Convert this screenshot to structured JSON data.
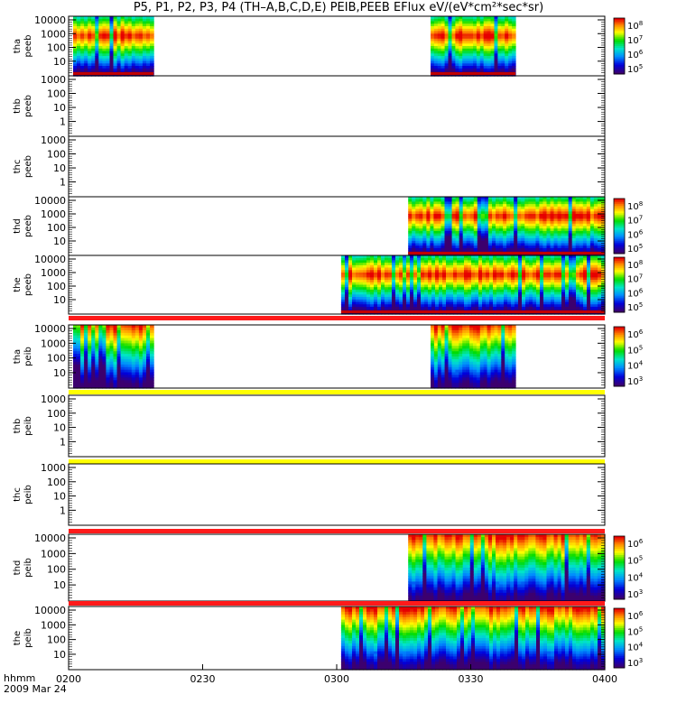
{
  "title": "P5, P1, P2, P3, P4 (TH–A,B,C,D,E) PEIB,PEEB EFlux eV/(eV*cm²*sec*sr)",
  "footer": {
    "hhmm": "hhmm",
    "date": "2009 Mar 24"
  },
  "time_ticks": [
    "0200",
    "0230",
    "0300",
    "0330",
    "0400"
  ],
  "colors": {
    "flag_red": "#ff1a1a",
    "flag_yellow": "#ffff00"
  },
  "chart_data": {
    "type": "heatmap",
    "x_range_hhmm": [
      "0200",
      "0400"
    ],
    "panels": [
      {
        "probe": "tha",
        "product": "peeb",
        "yaxis": [
          "10000",
          "1000",
          "100",
          "10"
        ],
        "colorbar": [
          "10^8",
          "10^7",
          "10^6",
          "10^5"
        ],
        "coverage_hhmm": [
          [
            "0201",
            "0219"
          ],
          [
            "0321",
            "0340"
          ]
        ],
        "flag_bar": null,
        "spec": "electron"
      },
      {
        "probe": "thb",
        "product": "peeb",
        "yaxis": [
          "1000",
          "100",
          "10",
          "1"
        ],
        "colorbar": [],
        "coverage_hhmm": [],
        "flag_bar": null,
        "spec": "none"
      },
      {
        "probe": "thc",
        "product": "peeb",
        "yaxis": [
          "1000",
          "100",
          "10",
          "1"
        ],
        "colorbar": [],
        "coverage_hhmm": [],
        "flag_bar": null,
        "spec": "none"
      },
      {
        "probe": "thd",
        "product": "peeb",
        "yaxis": [
          "10000",
          "1000",
          "100",
          "10"
        ],
        "colorbar": [
          "10^8",
          "10^7",
          "10^6",
          "10^5"
        ],
        "coverage_hhmm": [
          [
            "0316",
            "0400"
          ]
        ],
        "flag_bar": null,
        "spec": "electron"
      },
      {
        "probe": "the",
        "product": "peeb",
        "yaxis": [
          "10000",
          "1000",
          "100",
          "10"
        ],
        "colorbar": [
          "10^8",
          "10^7",
          "10^6",
          "10^5"
        ],
        "coverage_hhmm": [
          [
            "0301",
            "0400"
          ]
        ],
        "flag_bar": "red",
        "spec": "electron"
      },
      {
        "probe": "tha",
        "product": "peib",
        "yaxis": [
          "10000",
          "1000",
          "100",
          "10"
        ],
        "colorbar": [
          "10^6",
          "10^5",
          "10^4",
          "10^3"
        ],
        "coverage_hhmm": [
          [
            "0201",
            "0219"
          ],
          [
            "0321",
            "0340"
          ]
        ],
        "flag_bar": "yellow",
        "spec": "ion"
      },
      {
        "probe": "thb",
        "product": "peib",
        "yaxis": [
          "1000",
          "100",
          "10",
          "1"
        ],
        "colorbar": [],
        "coverage_hhmm": [],
        "flag_bar": "yellow",
        "spec": "none"
      },
      {
        "probe": "thc",
        "product": "peib",
        "yaxis": [
          "1000",
          "100",
          "10",
          "1"
        ],
        "colorbar": [],
        "coverage_hhmm": [],
        "flag_bar": "red",
        "spec": "none"
      },
      {
        "probe": "thd",
        "product": "peib",
        "yaxis": [
          "10000",
          "1000",
          "100",
          "10"
        ],
        "colorbar": [
          "10^6",
          "10^5",
          "10^4",
          "10^3"
        ],
        "coverage_hhmm": [
          [
            "0316",
            "0400"
          ]
        ],
        "flag_bar": "red",
        "spec": "ion"
      },
      {
        "probe": "the",
        "product": "peib",
        "yaxis": [
          "10000",
          "1000",
          "100",
          "10"
        ],
        "colorbar": [
          "10^6",
          "10^5",
          "10^4",
          "10^3"
        ],
        "coverage_hhmm": [
          [
            "0301",
            "0400"
          ]
        ],
        "flag_bar": null,
        "spec": "ion"
      }
    ]
  }
}
